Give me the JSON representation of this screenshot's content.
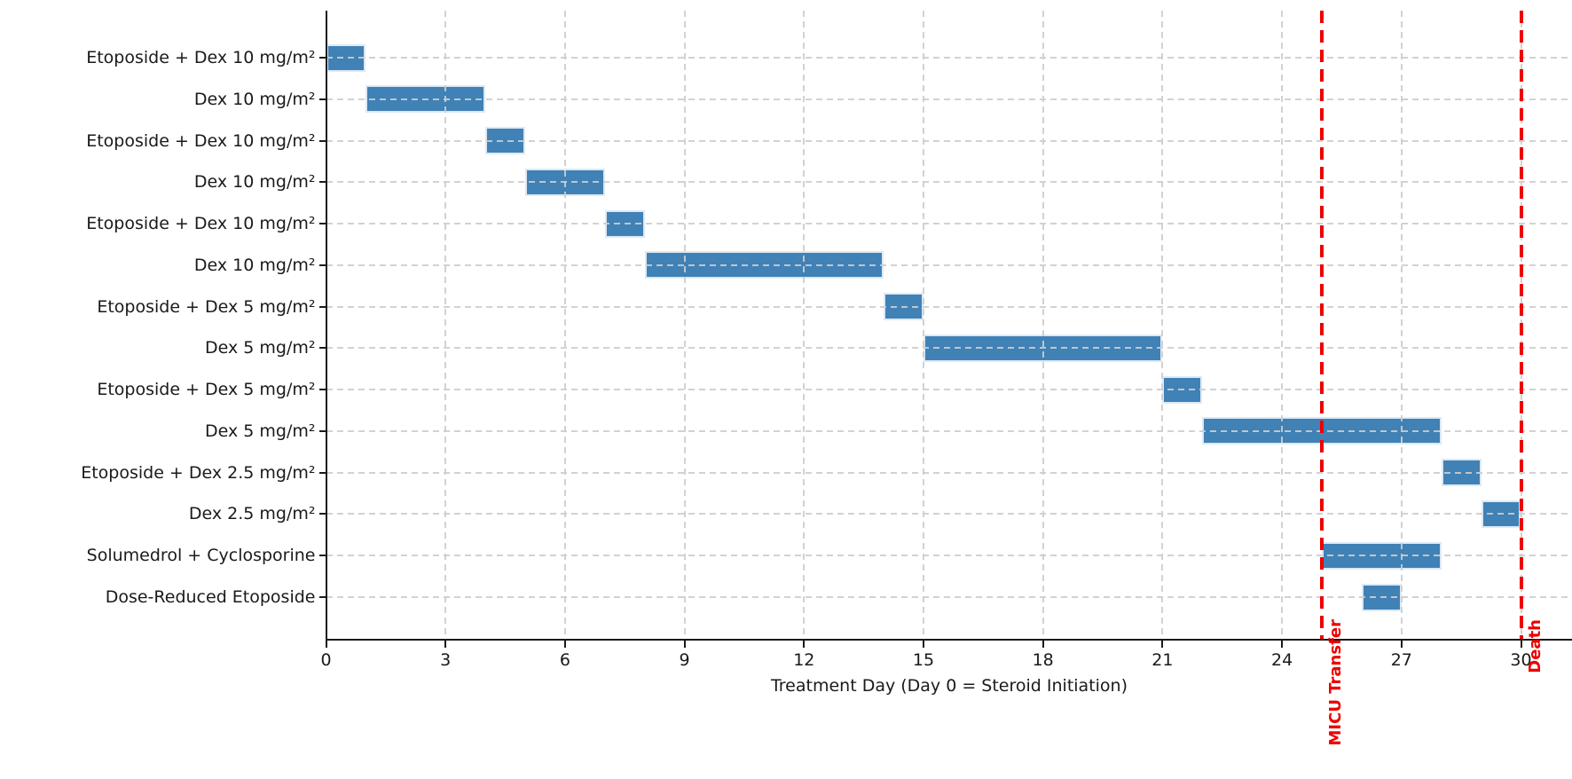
{
  "chart_data": {
    "type": "bar",
    "subtype": "gantt-horizontal-timeline",
    "title": "",
    "xlabel": "Treatment Day (Day 0 = Steroid Initiation)",
    "ylabel": "",
    "xlim": [
      0,
      31.3
    ],
    "xticks": [
      0,
      3,
      6,
      9,
      12,
      15,
      18,
      21,
      24,
      27,
      30
    ],
    "grid": "dashed, both axes, drawn over bars",
    "legend": "none",
    "rows": [
      {
        "label": "Etoposide + Dex 10 mg/m²",
        "start": 0,
        "end": 1
      },
      {
        "label": "Dex 10 mg/m²",
        "start": 1,
        "end": 4
      },
      {
        "label": "Etoposide + Dex 10 mg/m²",
        "start": 4,
        "end": 5
      },
      {
        "label": "Dex 10 mg/m²",
        "start": 5,
        "end": 7
      },
      {
        "label": "Etoposide + Dex 10 mg/m²",
        "start": 7,
        "end": 8
      },
      {
        "label": "Dex 10 mg/m²",
        "start": 8,
        "end": 14
      },
      {
        "label": "Etoposide + Dex 5 mg/m²",
        "start": 14,
        "end": 15
      },
      {
        "label": "Dex 5 mg/m²",
        "start": 15,
        "end": 21
      },
      {
        "label": "Etoposide + Dex 5 mg/m²",
        "start": 21,
        "end": 22
      },
      {
        "label": "Dex 5 mg/m²",
        "start": 22,
        "end": 28
      },
      {
        "label": "Etoposide + Dex 2.5 mg/m²",
        "start": 28,
        "end": 29
      },
      {
        "label": "Dex 2.5 mg/m²",
        "start": 29,
        "end": 30
      },
      {
        "label": "Solumedrol + Cyclosporine",
        "start": 25,
        "end": 28
      },
      {
        "label": "Dose-Reduced Etoposide",
        "start": 26,
        "end": 27
      }
    ],
    "events": [
      {
        "label": "MICU Transfer",
        "day": 25
      },
      {
        "label": "Death",
        "day": 30
      }
    ],
    "colors": {
      "bar_fill": "#4081b6",
      "bar_edge": "#dce9f5",
      "event_line": "#ee0000",
      "event_text": "#ee0000",
      "grid": "#cdcdcd",
      "axis": "#1a1a1a",
      "tick_text": "#1a1a1a",
      "background": "#ffffff"
    }
  }
}
